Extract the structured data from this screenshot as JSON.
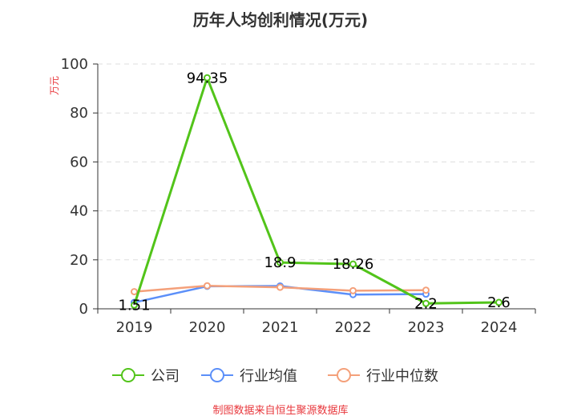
{
  "chart_data": {
    "type": "line",
    "title": "历年人均创利情况(万元)",
    "ylabel": "万元",
    "xlabel": "",
    "categories": [
      "2019",
      "2020",
      "2021",
      "2022",
      "2023",
      "2024"
    ],
    "ylim": [
      0,
      100
    ],
    "yticks": [
      0,
      20,
      40,
      60,
      80,
      100
    ],
    "grid": true,
    "legend_position": "bottom",
    "series": [
      {
        "name": "公司",
        "color": "#52c41a",
        "values": [
          1.51,
          94.35,
          18.9,
          18.26,
          2.2,
          2.6
        ],
        "data_labels": [
          "1.51",
          "94.35",
          "18.9",
          "18.26",
          "2.2",
          "2.6"
        ]
      },
      {
        "name": "行业均值",
        "color": "#5b8ff9",
        "values": [
          2.6,
          9.2,
          9.3,
          5.8,
          6.0,
          null
        ]
      },
      {
        "name": "行业中位数",
        "color": "#f4a07a",
        "values": [
          7.0,
          9.4,
          8.8,
          7.4,
          7.6,
          null
        ]
      }
    ],
    "source": "制图数据来自恒生聚源数据库",
    "colors": {
      "axis": "#333333",
      "grid": "#dddddd",
      "ylabel": "#e8383d",
      "source": "#e8383d"
    }
  }
}
